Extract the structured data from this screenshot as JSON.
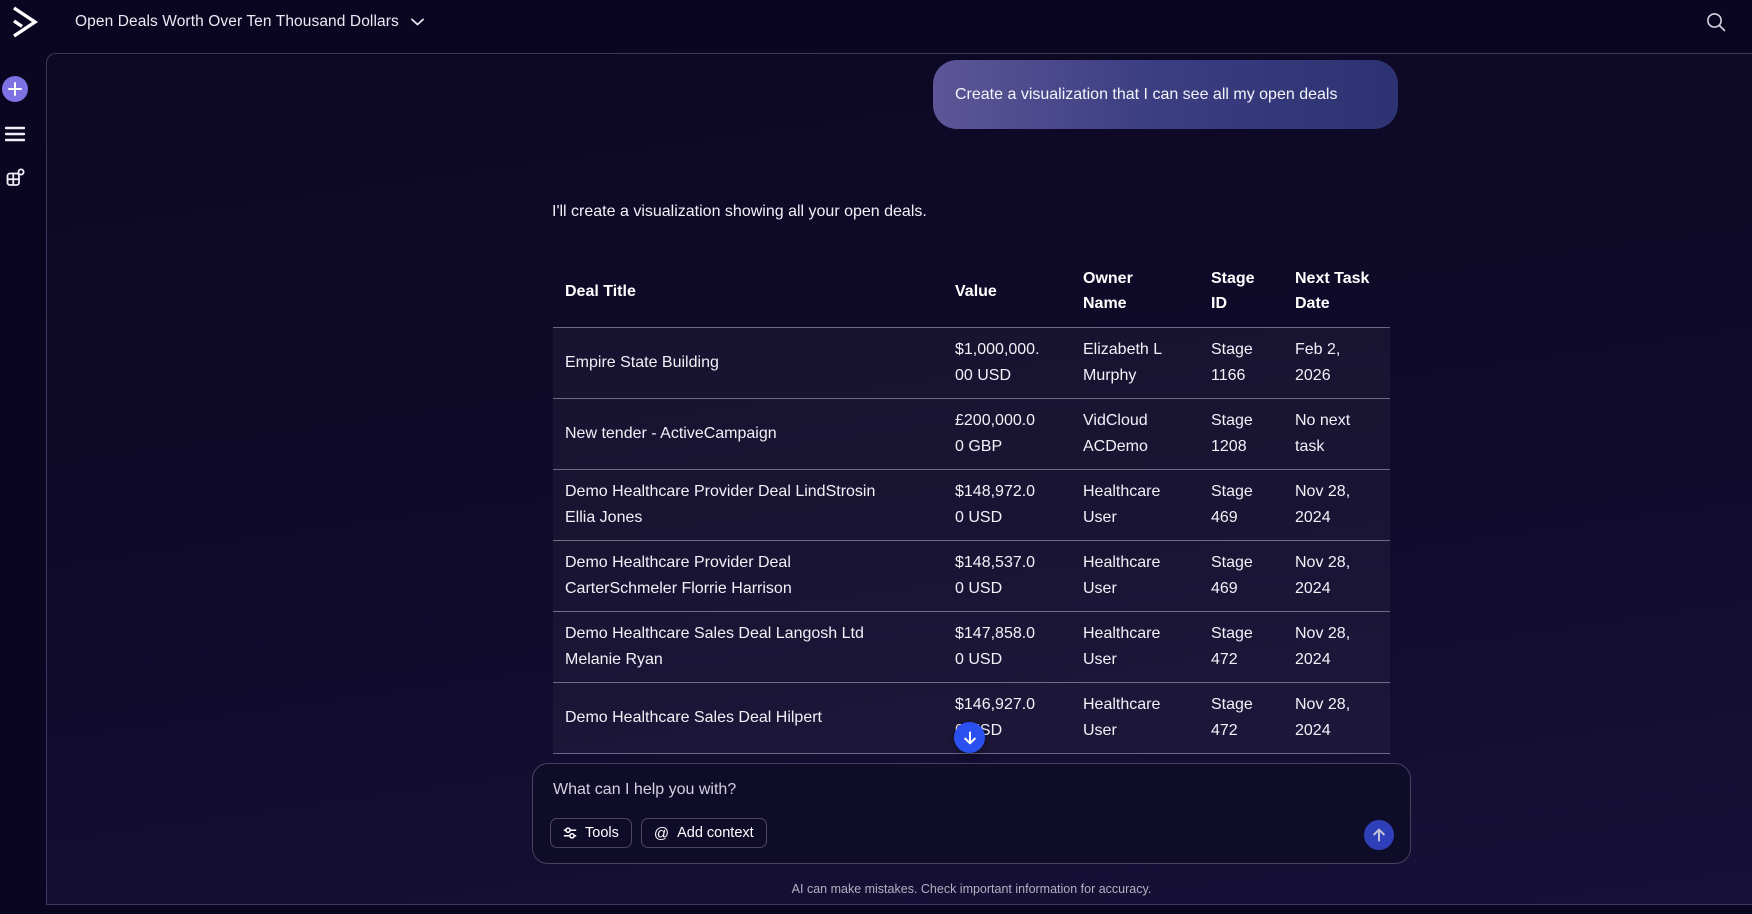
{
  "app": {
    "title": "Open Deals Worth Over Ten Thousand Dollars"
  },
  "chat": {
    "user_message": "Create a visualization that I can see all my open deals",
    "assistant_message": "I'll create a visualization showing all your open deals."
  },
  "deals_table": {
    "columns": [
      "Deal Title",
      "Value",
      "Owner Name",
      "Stage ID",
      "Next Task Date"
    ],
    "rows": [
      [
        "Empire State Building",
        "$1,000,000.00 USD",
        "Elizabeth L Murphy",
        "Stage 1166",
        "Feb 2, 2026"
      ],
      [
        "New tender - ActiveCampaign",
        "£200,000.00 GBP",
        "VidCloud ACDemo",
        "Stage 1208",
        "No next task"
      ],
      [
        "Demo Healthcare Provider Deal LindStrosin Ellia Jones",
        "$148,972.00 USD",
        "Healthcare User",
        "Stage 469",
        "Nov 28, 2024"
      ],
      [
        "Demo Healthcare Provider Deal CarterSchmeler Florrie Harrison",
        "$148,537.00 USD",
        "Healthcare User",
        "Stage 469",
        "Nov 28, 2024"
      ],
      [
        "Demo Healthcare Sales Deal Langosh Ltd Melanie Ryan",
        "$147,858.00 USD",
        "Healthcare User",
        "Stage 472",
        "Nov 28, 2024"
      ],
      [
        "Demo Healthcare Sales Deal Hilpert",
        "$146,927.00 USD",
        "Healthcare User",
        "Stage 472",
        "Nov 28, 2024"
      ]
    ]
  },
  "composer": {
    "placeholder": "What can I help you with?",
    "tools_button": "Tools",
    "add_context_button": "Add context"
  },
  "footer": {
    "disclaimer": "AI can make mistakes. Check important information for accuracy."
  },
  "icons": {
    "logo": "activecampaign-chevron",
    "rail": [
      "plus",
      "menu",
      "widgets"
    ],
    "search": "magnifier",
    "title_caret": "chevron-down",
    "tools": "tune-sliders",
    "add_context": "at-sign",
    "send": "arrow-up",
    "scroll": "arrow-down"
  },
  "colors": {
    "page_bg": "#0a0621",
    "accent_purple": "#7d71e3",
    "send_blue": "#2f3fba",
    "scroll_blue": "#2b50f0",
    "bubble_gradient_start": "#5d5697",
    "bubble_gradient_end": "#2c3272"
  }
}
